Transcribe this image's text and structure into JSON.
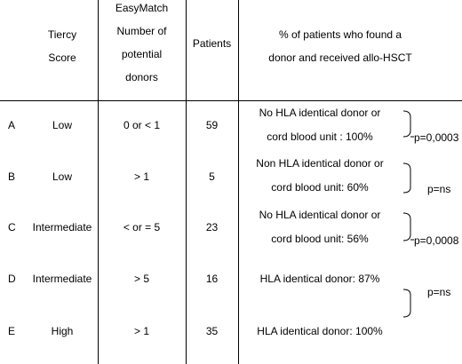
{
  "headers": {
    "tiercy": [
      "Tiercy",
      "Score"
    ],
    "easymatch": [
      "EasyMatch",
      "Number of",
      "potential",
      "donors"
    ],
    "patients": "Patients",
    "percent": [
      "% of patients who found a",
      "donor and received allo-HSCT"
    ]
  },
  "rows": [
    {
      "id": "A",
      "score": "Low",
      "donors": "0 or < 1",
      "patients": "59",
      "pct": [
        "No HLA identical donor or",
        "cord blood unit : 100%"
      ]
    },
    {
      "id": "B",
      "score": "Low",
      "donors": "> 1",
      "patients": "5",
      "pct": [
        "Non HLA identical donor or",
        "cord blood unit: 60%"
      ]
    },
    {
      "id": "C",
      "score": "Intermediate",
      "donors": "< or = 5",
      "patients": "23",
      "pct": [
        "No HLA identical donor or",
        "cord blood unit: 56%"
      ]
    },
    {
      "id": "D",
      "score": "Intermediate",
      "donors": "> 5",
      "patients": "16",
      "pct": [
        "HLA identical donor: 87%"
      ]
    },
    {
      "id": "E",
      "score": "High",
      "donors": "> 1",
      "patients": "35",
      "pct": [
        "HLA identical donor: 100%"
      ]
    }
  ],
  "pvalues": {
    "ab": "p=0,0003",
    "bc": "p=ns",
    "cd": "p=0,0008",
    "de": "p=ns"
  }
}
